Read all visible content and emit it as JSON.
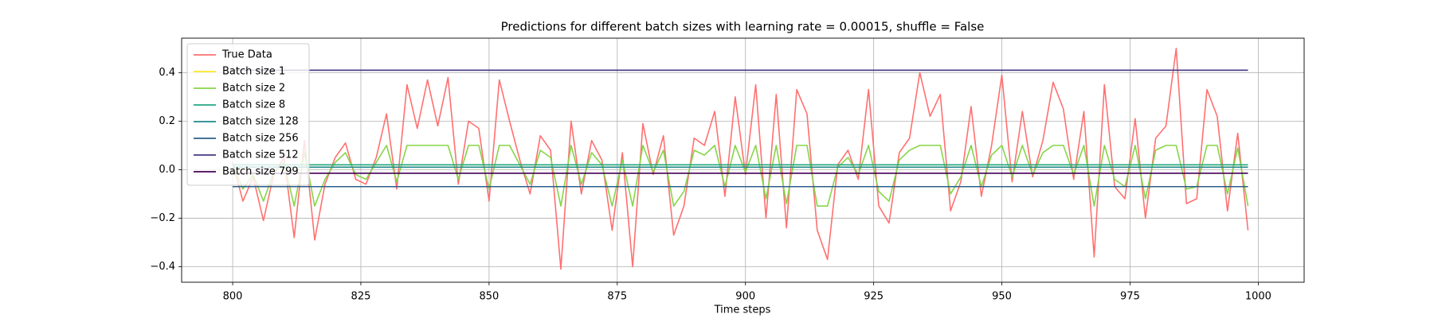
{
  "chart_data": {
    "type": "line",
    "title": "Predictions for different batch sizes with learning rate = 0.00015, shuffle = False",
    "x_label": "Time steps",
    "x": [
      800,
      802,
      804,
      806,
      808,
      810,
      812,
      814,
      816,
      818,
      820,
      822,
      824,
      826,
      828,
      830,
      832,
      834,
      836,
      838,
      840,
      842,
      844,
      846,
      848,
      850,
      852,
      854,
      856,
      858,
      860,
      862,
      864,
      866,
      868,
      870,
      872,
      874,
      876,
      878,
      880,
      882,
      884,
      886,
      888,
      890,
      892,
      894,
      896,
      898,
      900,
      902,
      904,
      906,
      908,
      910,
      912,
      914,
      916,
      918,
      920,
      922,
      924,
      926,
      928,
      930,
      932,
      934,
      936,
      938,
      940,
      942,
      944,
      946,
      948,
      950,
      952,
      954,
      956,
      958,
      960,
      962,
      964,
      966,
      968,
      970,
      972,
      974,
      976,
      978,
      980,
      982,
      984,
      986,
      988,
      990,
      992,
      994,
      996,
      998
    ],
    "series": [
      {
        "name": "True Data",
        "color": "#ff7070",
        "values": [
          0.03,
          -0.13,
          -0.03,
          -0.21,
          -0.02,
          0.05,
          -0.28,
          0.12,
          -0.29,
          -0.06,
          0.05,
          0.11,
          -0.04,
          -0.06,
          0.05,
          0.23,
          -0.08,
          0.35,
          0.17,
          0.37,
          0.18,
          0.38,
          -0.06,
          0.2,
          0.17,
          -0.13,
          0.37,
          0.2,
          0.04,
          -0.1,
          0.14,
          0.08,
          -0.41,
          0.2,
          -0.1,
          0.12,
          0.04,
          -0.25,
          0.07,
          -0.4,
          0.19,
          -0.02,
          0.14,
          -0.27,
          -0.15,
          0.13,
          0.1,
          0.24,
          -0.11,
          0.3,
          -0.02,
          0.35,
          -0.2,
          0.31,
          -0.24,
          0.33,
          0.23,
          -0.25,
          -0.37,
          0.02,
          0.08,
          -0.04,
          0.33,
          -0.15,
          -0.22,
          0.07,
          0.13,
          0.4,
          0.22,
          0.31,
          -0.17,
          -0.05,
          0.26,
          -0.11,
          0.1,
          0.39,
          -0.05,
          0.24,
          -0.03,
          0.12,
          0.36,
          0.25,
          -0.04,
          0.24,
          -0.36,
          0.35,
          -0.07,
          -0.12,
          0.21,
          -0.2,
          0.13,
          0.18,
          0.5,
          -0.14,
          -0.12,
          0.33,
          0.22,
          -0.17,
          0.15,
          -0.25
        ]
      },
      {
        "name": "Batch size 1",
        "color": "#fde725",
        "values": [
          0.02,
          0.02,
          0.02,
          0.02,
          0.02,
          0.02,
          0.02,
          0.02,
          0.02,
          0.02,
          0.02,
          0.02,
          0.02,
          0.02,
          0.02,
          0.02,
          0.02,
          0.02,
          0.02,
          0.02,
          0.02,
          0.02,
          0.02,
          0.02,
          0.02,
          0.02,
          0.02,
          0.02,
          0.02,
          0.02,
          0.02,
          0.02,
          0.02,
          0.02,
          0.02,
          0.02,
          0.02,
          0.02,
          0.02,
          0.02,
          0.02,
          0.02,
          0.02,
          0.02,
          0.02,
          0.02,
          0.02,
          0.02,
          0.02,
          0.02,
          0.02,
          0.02,
          0.02,
          0.02,
          0.02,
          0.02,
          0.02,
          0.02,
          0.02,
          0.02,
          0.02,
          0.02,
          0.02,
          0.02,
          0.02,
          0.02,
          0.02,
          0.02,
          0.02,
          0.02,
          0.02,
          0.02,
          0.02,
          0.02,
          0.02,
          0.02,
          0.02,
          0.02,
          0.02,
          0.02,
          0.02,
          0.02,
          0.02,
          0.02,
          0.02,
          0.02,
          0.02,
          0.02,
          0.02,
          0.02,
          0.02,
          0.02,
          0.02,
          0.02,
          0.02,
          0.02,
          0.02,
          0.02,
          0.02,
          0.02
        ]
      },
      {
        "name": "Batch size 2",
        "color": "#86d549",
        "values": [
          0.02,
          -0.08,
          -0.02,
          -0.13,
          -0.01,
          0.03,
          -0.15,
          0.07,
          -0.15,
          -0.04,
          0.03,
          0.07,
          -0.02,
          -0.04,
          0.03,
          0.1,
          -0.05,
          0.1,
          0.1,
          0.1,
          0.1,
          0.1,
          -0.04,
          0.1,
          0.1,
          -0.08,
          0.1,
          0.1,
          0.02,
          -0.06,
          0.08,
          0.05,
          -0.15,
          0.1,
          -0.06,
          0.07,
          0.02,
          -0.15,
          0.04,
          -0.15,
          0.1,
          -0.01,
          0.08,
          -0.15,
          -0.09,
          0.08,
          0.06,
          0.1,
          -0.07,
          0.1,
          -0.01,
          0.1,
          -0.12,
          0.1,
          -0.14,
          0.1,
          0.1,
          -0.15,
          -0.15,
          0.01,
          0.05,
          -0.02,
          0.1,
          -0.09,
          -0.13,
          0.04,
          0.08,
          0.1,
          0.1,
          0.1,
          -0.1,
          -0.03,
          0.1,
          -0.07,
          0.06,
          0.1,
          -0.03,
          0.1,
          -0.02,
          0.07,
          0.1,
          0.1,
          -0.02,
          0.1,
          -0.15,
          0.1,
          -0.04,
          -0.07,
          0.1,
          -0.12,
          0.08,
          0.1,
          0.1,
          -0.08,
          -0.07,
          0.1,
          0.1,
          -0.1,
          0.09,
          -0.15
        ]
      },
      {
        "name": "Batch size 8",
        "color": "#22a884",
        "values": [
          0.02,
          0.02,
          0.02,
          0.02,
          0.02,
          0.02,
          0.02,
          0.02,
          0.02,
          0.02,
          0.02,
          0.02,
          0.02,
          0.02,
          0.02,
          0.02,
          0.02,
          0.02,
          0.02,
          0.02,
          0.02,
          0.02,
          0.02,
          0.02,
          0.02,
          0.02,
          0.02,
          0.02,
          0.02,
          0.02,
          0.02,
          0.02,
          0.02,
          0.02,
          0.02,
          0.02,
          0.02,
          0.02,
          0.02,
          0.02,
          0.02,
          0.02,
          0.02,
          0.02,
          0.02,
          0.02,
          0.02,
          0.02,
          0.02,
          0.02,
          0.02,
          0.02,
          0.02,
          0.02,
          0.02,
          0.02,
          0.02,
          0.02,
          0.02,
          0.02,
          0.02,
          0.02,
          0.02,
          0.02,
          0.02,
          0.02,
          0.02,
          0.02,
          0.02,
          0.02,
          0.02,
          0.02,
          0.02,
          0.02,
          0.02,
          0.02,
          0.02,
          0.02,
          0.02,
          0.02,
          0.02,
          0.02,
          0.02,
          0.02,
          0.02,
          0.02,
          0.02,
          0.02,
          0.02,
          0.02,
          0.02,
          0.02,
          0.02,
          0.02,
          0.02,
          0.02,
          0.02,
          0.02,
          0.02,
          0.02
        ]
      },
      {
        "name": "Batch size 128",
        "color": "#1f8a8a",
        "values": [
          0.01,
          0.01,
          0.01,
          0.01,
          0.01,
          0.01,
          0.01,
          0.01,
          0.01,
          0.01,
          0.01,
          0.01,
          0.01,
          0.01,
          0.01,
          0.01,
          0.01,
          0.01,
          0.01,
          0.01,
          0.01,
          0.01,
          0.01,
          0.01,
          0.01,
          0.01,
          0.01,
          0.01,
          0.01,
          0.01,
          0.01,
          0.01,
          0.01,
          0.01,
          0.01,
          0.01,
          0.01,
          0.01,
          0.01,
          0.01,
          0.01,
          0.01,
          0.01,
          0.01,
          0.01,
          0.01,
          0.01,
          0.01,
          0.01,
          0.01,
          0.01,
          0.01,
          0.01,
          0.01,
          0.01,
          0.01,
          0.01,
          0.01,
          0.01,
          0.01,
          0.01,
          0.01,
          0.01,
          0.01,
          0.01,
          0.01,
          0.01,
          0.01,
          0.01,
          0.01,
          0.01,
          0.01,
          0.01,
          0.01,
          0.01,
          0.01,
          0.01,
          0.01,
          0.01,
          0.01,
          0.01,
          0.01,
          0.01,
          0.01,
          0.01,
          0.01,
          0.01,
          0.01,
          0.01,
          0.01,
          0.01,
          0.01,
          0.01,
          0.01,
          0.01,
          0.01,
          0.01,
          0.01,
          0.01,
          0.01
        ]
      },
      {
        "name": "Batch size 256",
        "color": "#2c5f8a",
        "values": [
          -0.07,
          -0.07,
          -0.07,
          -0.07,
          -0.07,
          -0.07,
          -0.07,
          -0.07,
          -0.07,
          -0.07,
          -0.07,
          -0.07,
          -0.07,
          -0.07,
          -0.07,
          -0.07,
          -0.07,
          -0.07,
          -0.07,
          -0.07,
          -0.07,
          -0.07,
          -0.07,
          -0.07,
          -0.07,
          -0.07,
          -0.07,
          -0.07,
          -0.07,
          -0.07,
          -0.07,
          -0.07,
          -0.07,
          -0.07,
          -0.07,
          -0.07,
          -0.07,
          -0.07,
          -0.07,
          -0.07,
          -0.07,
          -0.07,
          -0.07,
          -0.07,
          -0.07,
          -0.07,
          -0.07,
          -0.07,
          -0.07,
          -0.07,
          -0.07,
          -0.07,
          -0.07,
          -0.07,
          -0.07,
          -0.07,
          -0.07,
          -0.07,
          -0.07,
          -0.07,
          -0.07,
          -0.07,
          -0.07,
          -0.07,
          -0.07,
          -0.07,
          -0.07,
          -0.07,
          -0.07,
          -0.07,
          -0.07,
          -0.07,
          -0.07,
          -0.07,
          -0.07,
          -0.07,
          -0.07,
          -0.07,
          -0.07,
          -0.07,
          -0.07,
          -0.07,
          -0.07,
          -0.07,
          -0.07,
          -0.07,
          -0.07,
          -0.07,
          -0.07,
          -0.07,
          -0.07,
          -0.07,
          -0.07,
          -0.07,
          -0.07,
          -0.07,
          -0.07,
          -0.07,
          -0.07,
          -0.07
        ]
      },
      {
        "name": "Batch size 512",
        "color": "#443983",
        "values": [
          0.41,
          0.41,
          0.41,
          0.41,
          0.41,
          0.41,
          0.41,
          0.41,
          0.41,
          0.41,
          0.41,
          0.41,
          0.41,
          0.41,
          0.41,
          0.41,
          0.41,
          0.41,
          0.41,
          0.41,
          0.41,
          0.41,
          0.41,
          0.41,
          0.41,
          0.41,
          0.41,
          0.41,
          0.41,
          0.41,
          0.41,
          0.41,
          0.41,
          0.41,
          0.41,
          0.41,
          0.41,
          0.41,
          0.41,
          0.41,
          0.41,
          0.41,
          0.41,
          0.41,
          0.41,
          0.41,
          0.41,
          0.41,
          0.41,
          0.41,
          0.41,
          0.41,
          0.41,
          0.41,
          0.41,
          0.41,
          0.41,
          0.41,
          0.41,
          0.41,
          0.41,
          0.41,
          0.41,
          0.41,
          0.41,
          0.41,
          0.41,
          0.41,
          0.41,
          0.41,
          0.41,
          0.41,
          0.41,
          0.41,
          0.41,
          0.41,
          0.41,
          0.41,
          0.41,
          0.41,
          0.41,
          0.41,
          0.41,
          0.41,
          0.41,
          0.41,
          0.41,
          0.41,
          0.41,
          0.41,
          0.41,
          0.41,
          0.41,
          0.41,
          0.41,
          0.41,
          0.41,
          0.41,
          0.41,
          0.41
        ]
      },
      {
        "name": "Batch size 799",
        "color": "#440154",
        "values": [
          -0.015,
          -0.015,
          -0.015,
          -0.015,
          -0.015,
          -0.015,
          -0.015,
          -0.015,
          -0.015,
          -0.015,
          -0.015,
          -0.015,
          -0.015,
          -0.015,
          -0.015,
          -0.015,
          -0.015,
          -0.015,
          -0.015,
          -0.015,
          -0.015,
          -0.015,
          -0.015,
          -0.015,
          -0.015,
          -0.015,
          -0.015,
          -0.015,
          -0.015,
          -0.015,
          -0.015,
          -0.015,
          -0.015,
          -0.015,
          -0.015,
          -0.015,
          -0.015,
          -0.015,
          -0.015,
          -0.015,
          -0.015,
          -0.015,
          -0.015,
          -0.015,
          -0.015,
          -0.015,
          -0.015,
          -0.015,
          -0.015,
          -0.015,
          -0.015,
          -0.015,
          -0.015,
          -0.015,
          -0.015,
          -0.015,
          -0.015,
          -0.015,
          -0.015,
          -0.015,
          -0.015,
          -0.015,
          -0.015,
          -0.015,
          -0.015,
          -0.015,
          -0.015,
          -0.015,
          -0.015,
          -0.015,
          -0.015,
          -0.015,
          -0.015,
          -0.015,
          -0.015,
          -0.015,
          -0.015,
          -0.015,
          -0.015,
          -0.015,
          -0.015,
          -0.015,
          -0.015,
          -0.015,
          -0.015,
          -0.015,
          -0.015,
          -0.015,
          -0.015,
          -0.015,
          -0.015,
          -0.015,
          -0.015,
          -0.015,
          -0.015,
          -0.015,
          -0.015,
          -0.015,
          -0.015,
          -0.015
        ]
      }
    ],
    "xlim": [
      790.05,
      1008.95
    ],
    "xticks": [
      800,
      825,
      850,
      875,
      900,
      925,
      950,
      975,
      1000
    ],
    "ylim": [
      -0.464,
      0.542
    ],
    "yticks": [
      {
        "value": -0.4,
        "label": "−0.4"
      },
      {
        "value": -0.2,
        "label": "−0.2"
      },
      {
        "value": 0,
        "label": "0.0"
      },
      0.2,
      0.4
    ],
    "grid": true,
    "legend": "upper-left"
  }
}
